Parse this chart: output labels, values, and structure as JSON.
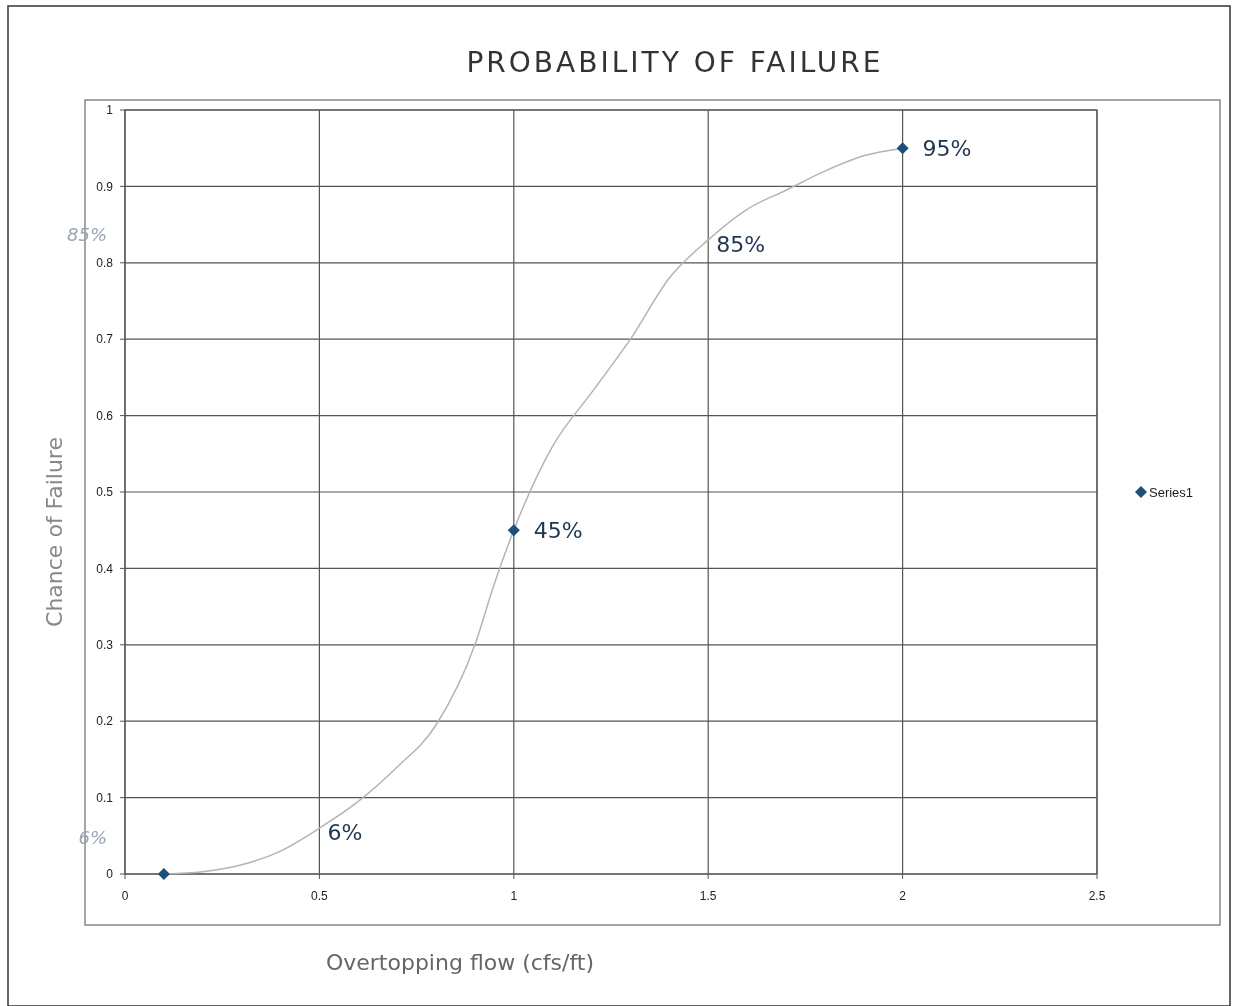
{
  "chart_data": {
    "type": "scatter",
    "title": "PROBABILITY OF FAILURE",
    "xlabel": "Overtopping flow (cfs/ft)",
    "ylabel": "Chance of Failure",
    "xlim": [
      0,
      2.5
    ],
    "xticks": [
      0,
      0.5,
      1,
      1.5,
      2,
      2.5
    ],
    "ylim": [
      0,
      1
    ],
    "yticks": [
      0,
      0.1,
      0.2,
      0.3,
      0.4,
      0.5,
      0.6,
      0.7,
      0.8,
      0.9,
      1
    ],
    "grid": true,
    "legend": "right",
    "series": [
      {
        "type": "line",
        "color": "#b4b4b4",
        "marker": "none",
        "x": [
          0.1,
          0.2,
          0.3,
          0.4,
          0.5,
          0.6,
          0.7,
          0.8,
          0.9,
          0.95,
          1,
          1.1,
          1.2,
          1.3,
          1.4,
          1.5,
          1.6,
          1.7,
          1.8,
          1.9,
          2
        ],
        "values": [
          0,
          0.003,
          0.012,
          0.03,
          0.06,
          0.095,
          0.14,
          0.195,
          0.3,
          0.38,
          0.45,
          0.56,
          0.63,
          0.7,
          0.78,
          0.83,
          0.87,
          0.895,
          0.92,
          0.94,
          0.95
        ]
      },
      {
        "type": "scatter",
        "name": "Series1",
        "color": "#1f4e79",
        "marker": "diamond",
        "x": [
          0.1,
          1,
          2
        ],
        "values": [
          0,
          0.45,
          0.95
        ]
      }
    ],
    "annotations": [
      {
        "text": "95%",
        "x": 2,
        "y": 0.95
      },
      {
        "text": "85%",
        "x": 1.5,
        "y": 0.83
      },
      {
        "text": "45%",
        "x": 1,
        "y": 0.45
      },
      {
        "text": "6%",
        "x": 0.5,
        "y": 0.06
      },
      "85%",
      "6%"
    ]
  }
}
